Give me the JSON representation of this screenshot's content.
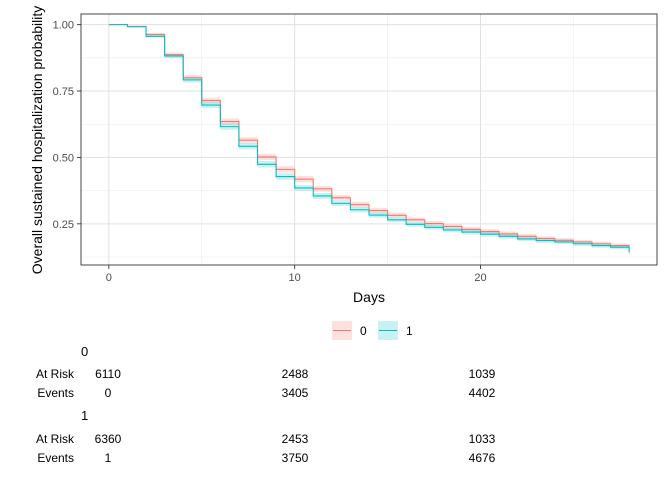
{
  "chart_data": {
    "type": "line",
    "xlabel": "Days",
    "ylabel": "Overall sustained hospitalization probability",
    "xlim": [
      -1.5,
      29.5
    ],
    "ylim": [
      0.095,
      1.04
    ],
    "x_ticks": [
      "0",
      "10",
      "20"
    ],
    "x_tick_values": [
      0,
      10,
      20
    ],
    "y_ticks": [
      "0.25",
      "0.50",
      "0.75",
      "1.00"
    ],
    "y_tick_values": [
      0.25,
      0.5,
      0.75,
      1.0
    ],
    "grid": true,
    "legend": {
      "position": "bottom",
      "entries": [
        "0",
        "1"
      ]
    },
    "colors": {
      "0": "#F8766D",
      "1": "#00BFC4"
    },
    "series": [
      {
        "name": "0",
        "x": [
          0,
          1,
          2,
          3,
          4,
          5,
          6,
          7,
          8,
          9,
          10,
          11,
          12,
          13,
          14,
          15,
          16,
          17,
          18,
          19,
          20,
          21,
          22,
          23,
          24,
          25,
          26,
          27,
          28
        ],
        "y": [
          1.0,
          0.993,
          0.963,
          0.887,
          0.8,
          0.714,
          0.635,
          0.565,
          0.502,
          0.455,
          0.418,
          0.382,
          0.348,
          0.322,
          0.3,
          0.282,
          0.265,
          0.251,
          0.24,
          0.229,
          0.221,
          0.212,
          0.203,
          0.195,
          0.188,
          0.182,
          0.175,
          0.168,
          0.16
        ],
        "lower": [
          1.0,
          0.991,
          0.958,
          0.879,
          0.79,
          0.703,
          0.623,
          0.553,
          0.49,
          0.443,
          0.406,
          0.371,
          0.337,
          0.311,
          0.29,
          0.272,
          0.256,
          0.242,
          0.231,
          0.22,
          0.212,
          0.203,
          0.194,
          0.187,
          0.18,
          0.174,
          0.167,
          0.16,
          0.151
        ],
        "upper": [
          1.0,
          0.995,
          0.968,
          0.895,
          0.81,
          0.725,
          0.647,
          0.577,
          0.514,
          0.467,
          0.43,
          0.393,
          0.359,
          0.333,
          0.31,
          0.292,
          0.274,
          0.26,
          0.249,
          0.238,
          0.23,
          0.221,
          0.212,
          0.203,
          0.196,
          0.19,
          0.183,
          0.176,
          0.169
        ]
      },
      {
        "name": "1",
        "x": [
          0,
          1,
          2,
          3,
          4,
          5,
          6,
          7,
          8,
          9,
          10,
          11,
          12,
          13,
          14,
          15,
          16,
          17,
          18,
          19,
          20,
          21,
          22,
          23,
          24,
          25,
          26,
          27,
          28
        ],
        "y": [
          1.0,
          0.992,
          0.956,
          0.882,
          0.792,
          0.697,
          0.616,
          0.542,
          0.474,
          0.428,
          0.385,
          0.355,
          0.327,
          0.303,
          0.283,
          0.265,
          0.248,
          0.237,
          0.227,
          0.219,
          0.211,
          0.203,
          0.193,
          0.187,
          0.182,
          0.175,
          0.168,
          0.162,
          0.142
        ],
        "lower": [
          1.0,
          0.99,
          0.951,
          0.874,
          0.782,
          0.686,
          0.604,
          0.53,
          0.462,
          0.416,
          0.374,
          0.344,
          0.317,
          0.293,
          0.273,
          0.256,
          0.239,
          0.228,
          0.218,
          0.21,
          0.202,
          0.194,
          0.185,
          0.179,
          0.174,
          0.167,
          0.16,
          0.154,
          0.133
        ],
        "upper": [
          1.0,
          0.994,
          0.961,
          0.89,
          0.802,
          0.708,
          0.628,
          0.554,
          0.486,
          0.44,
          0.396,
          0.366,
          0.337,
          0.313,
          0.293,
          0.274,
          0.257,
          0.246,
          0.236,
          0.228,
          0.22,
          0.212,
          0.201,
          0.195,
          0.19,
          0.183,
          0.176,
          0.17,
          0.151
        ]
      }
    ]
  },
  "risk_table": {
    "row_labels": {
      "at_risk": "At Risk",
      "events": "Events"
    },
    "groups": [
      {
        "title": "0",
        "at_risk": [
          "6110",
          "2488",
          "1039"
        ],
        "events": [
          "0",
          "3405",
          "4402"
        ]
      },
      {
        "title": "1",
        "at_risk": [
          "6360",
          "2453",
          "1033"
        ],
        "events": [
          "1",
          "3750",
          "4676"
        ]
      }
    ]
  }
}
